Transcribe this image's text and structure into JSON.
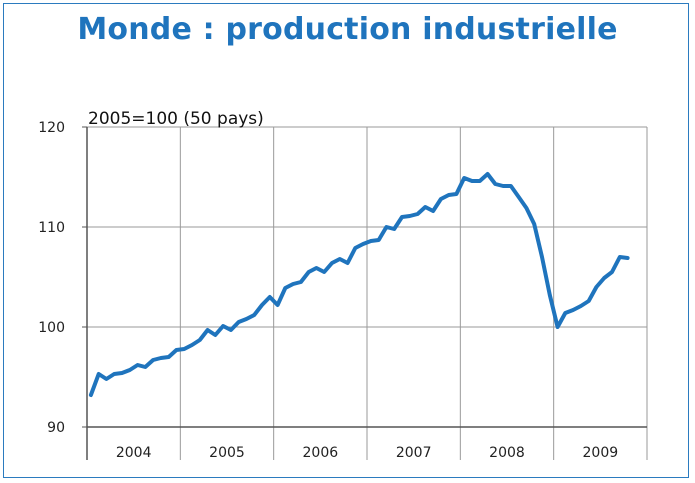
{
  "title": "Monde : production industrielle",
  "chart_data": {
    "type": "line",
    "title": "Monde : production industrielle",
    "ylabel": "2005=100 (50 pays)",
    "xlabel": "",
    "ylim": [
      90,
      120
    ],
    "yticks": [
      "90",
      "100",
      "110",
      "120"
    ],
    "ytick_values": [
      90,
      100,
      110,
      120
    ],
    "categories": [
      "2004",
      "2005",
      "2006",
      "2007",
      "2008",
      "2009"
    ],
    "grid": true,
    "line_color": "#1f74bd",
    "x": [
      "2004-01",
      "2004-02",
      "2004-03",
      "2004-04",
      "2004-05",
      "2004-06",
      "2004-07",
      "2004-08",
      "2004-09",
      "2004-10",
      "2004-11",
      "2004-12",
      "2005-01",
      "2005-02",
      "2005-03",
      "2005-04",
      "2005-05",
      "2005-06",
      "2005-07",
      "2005-08",
      "2005-09",
      "2005-10",
      "2005-11",
      "2005-12",
      "2006-01",
      "2006-02",
      "2006-03",
      "2006-04",
      "2006-05",
      "2006-06",
      "2006-07",
      "2006-08",
      "2006-09",
      "2006-10",
      "2006-11",
      "2006-12",
      "2007-01",
      "2007-02",
      "2007-03",
      "2007-04",
      "2007-05",
      "2007-06",
      "2007-07",
      "2007-08",
      "2007-09",
      "2007-10",
      "2007-11",
      "2007-12",
      "2008-01",
      "2008-02",
      "2008-03",
      "2008-04",
      "2008-05",
      "2008-06",
      "2008-07",
      "2008-08",
      "2008-09",
      "2008-10",
      "2008-11",
      "2008-12",
      "2009-01",
      "2009-02",
      "2009-03",
      "2009-04",
      "2009-05",
      "2009-06",
      "2009-07",
      "2009-08",
      "2009-09",
      "2009-10"
    ],
    "values": [
      93.2,
      95.3,
      94.8,
      95.3,
      95.4,
      95.7,
      96.2,
      96.0,
      96.7,
      96.9,
      97.0,
      97.7,
      97.8,
      98.2,
      98.7,
      99.7,
      99.2,
      100.1,
      99.7,
      100.5,
      100.8,
      101.2,
      102.2,
      103.0,
      102.2,
      103.9,
      104.3,
      104.5,
      105.5,
      105.9,
      105.5,
      106.4,
      106.8,
      106.4,
      107.9,
      108.3,
      108.6,
      108.7,
      110.0,
      109.8,
      111.0,
      111.1,
      111.3,
      112.0,
      111.6,
      112.8,
      113.2,
      113.3,
      114.9,
      114.6,
      114.6,
      115.3,
      114.3,
      114.1,
      114.1,
      113.0,
      111.9,
      110.3,
      107.0,
      103.2,
      100.0,
      101.4,
      101.7,
      102.1,
      102.6,
      104.0,
      104.9,
      105.5,
      107.0,
      106.9
    ]
  }
}
